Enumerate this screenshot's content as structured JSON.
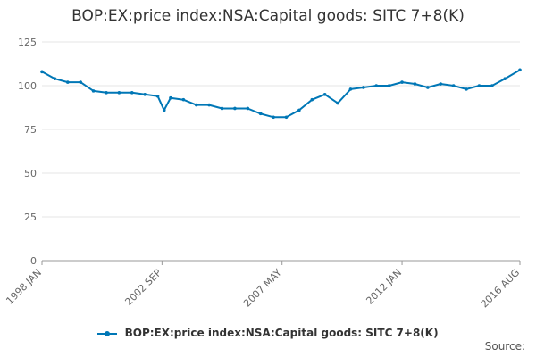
{
  "chart_data": {
    "type": "line",
    "title": "BOP:EX:price index:NSA:Capital goods: SITC 7+8(K)",
    "xlabel": "",
    "ylabel": "",
    "ylim": [
      0,
      125
    ],
    "yticks": [
      0,
      25,
      50,
      75,
      100,
      125
    ],
    "xtick_labels": [
      "1998 JAN",
      "2002 SEP",
      "2007 MAY",
      "2012 JAN",
      "2016 AUG"
    ],
    "x_range": [
      "1998-01",
      "2016-08"
    ],
    "grid": true,
    "legend_position": "bottom",
    "series": [
      {
        "name": "BOP:EX:price index:NSA:Capital goods: SITC 7+8(K)",
        "color": "#0077b6",
        "x": [
          "1998-01",
          "1998-07",
          "1999-01",
          "1999-07",
          "2000-01",
          "2000-07",
          "2001-01",
          "2001-07",
          "2002-01",
          "2002-07",
          "2002-10",
          "2003-01",
          "2003-07",
          "2004-01",
          "2004-07",
          "2005-01",
          "2005-07",
          "2006-01",
          "2006-07",
          "2007-01",
          "2007-07",
          "2008-01",
          "2008-07",
          "2009-01",
          "2009-07",
          "2010-01",
          "2010-07",
          "2011-01",
          "2011-07",
          "2012-01",
          "2012-07",
          "2013-01",
          "2013-07",
          "2014-01",
          "2014-07",
          "2015-01",
          "2015-07",
          "2016-01",
          "2016-08"
        ],
        "values": [
          108,
          104,
          102,
          102,
          97,
          96,
          96,
          96,
          95,
          94,
          86,
          93,
          92,
          89,
          89,
          87,
          87,
          87,
          84,
          82,
          82,
          86,
          92,
          95,
          90,
          98,
          99,
          100,
          100,
          102,
          101,
          99,
          101,
          100,
          98,
          100,
          100,
          104,
          109
        ]
      }
    ]
  },
  "legend": {
    "label": "BOP:EX:price index:NSA:Capital goods: SITC 7+8(K)"
  },
  "footer": {
    "source": "Source:"
  }
}
